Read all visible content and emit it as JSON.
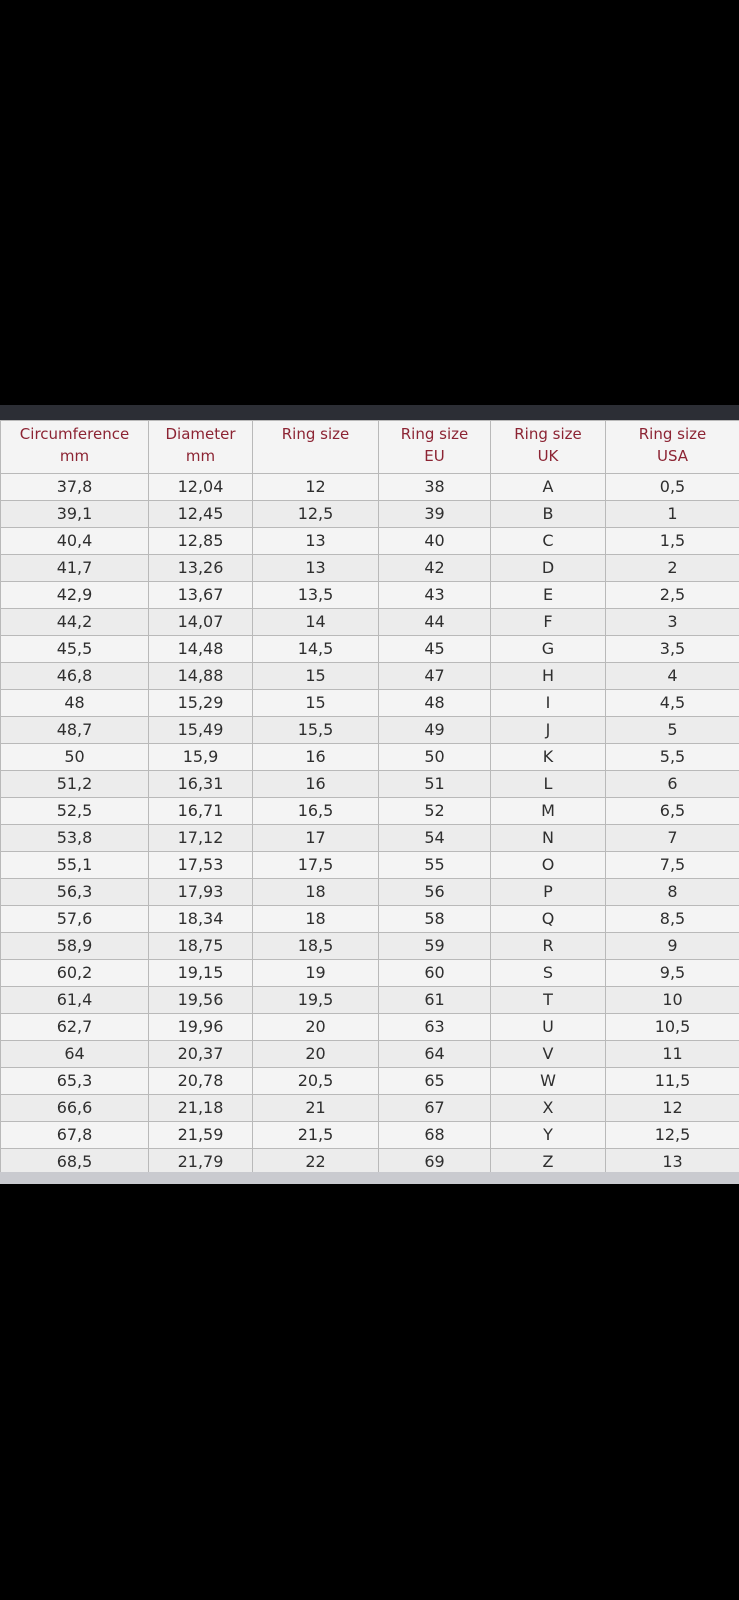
{
  "table": {
    "header": [
      [
        "Circumference",
        "mm"
      ],
      [
        "Diameter",
        "mm"
      ],
      [
        "Ring size"
      ],
      [
        "Ring size",
        "EU"
      ],
      [
        "Ring size",
        "UK"
      ],
      [
        "Ring size",
        "USA"
      ]
    ],
    "rows": [
      [
        "37,8",
        "12,04",
        "12",
        "38",
        "A",
        "0,5"
      ],
      [
        "39,1",
        "12,45",
        "12,5",
        "39",
        "B",
        "1"
      ],
      [
        "40,4",
        "12,85",
        "13",
        "40",
        "C",
        "1,5"
      ],
      [
        "41,7",
        "13,26",
        "13",
        "42",
        "D",
        "2"
      ],
      [
        "42,9",
        "13,67",
        "13,5",
        "43",
        "E",
        "2,5"
      ],
      [
        "44,2",
        "14,07",
        "14",
        "44",
        "F",
        "3"
      ],
      [
        "45,5",
        "14,48",
        "14,5",
        "45",
        "G",
        "3,5"
      ],
      [
        "46,8",
        "14,88",
        "15",
        "47",
        "H",
        "4"
      ],
      [
        "48",
        "15,29",
        "15",
        "48",
        "I",
        "4,5"
      ],
      [
        "48,7",
        "15,49",
        "15,5",
        "49",
        "J",
        "5"
      ],
      [
        "50",
        "15,9",
        "16",
        "50",
        "K",
        "5,5"
      ],
      [
        "51,2",
        "16,31",
        "16",
        "51",
        "L",
        "6"
      ],
      [
        "52,5",
        "16,71",
        "16,5",
        "52",
        "M",
        "6,5"
      ],
      [
        "53,8",
        "17,12",
        "17",
        "54",
        "N",
        "7"
      ],
      [
        "55,1",
        "17,53",
        "17,5",
        "55",
        "O",
        "7,5"
      ],
      [
        "56,3",
        "17,93",
        "18",
        "56",
        "P",
        "8"
      ],
      [
        "57,6",
        "18,34",
        "18",
        "58",
        "Q",
        "8,5"
      ],
      [
        "58,9",
        "18,75",
        "18,5",
        "59",
        "R",
        "9"
      ],
      [
        "60,2",
        "19,15",
        "19",
        "60",
        "S",
        "9,5"
      ],
      [
        "61,4",
        "19,56",
        "19,5",
        "61",
        "T",
        "10"
      ],
      [
        "62,7",
        "19,96",
        "20",
        "63",
        "U",
        "10,5"
      ],
      [
        "64",
        "20,37",
        "20",
        "64",
        "V",
        "11"
      ],
      [
        "65,3",
        "20,78",
        "20,5",
        "65",
        "W",
        "11,5"
      ],
      [
        "66,6",
        "21,18",
        "21",
        "67",
        "X",
        "12"
      ],
      [
        "67,8",
        "21,59",
        "21,5",
        "68",
        "Y",
        "12,5"
      ],
      [
        "68,5",
        "21,79",
        "22",
        "69",
        "Z",
        "13"
      ]
    ]
  }
}
